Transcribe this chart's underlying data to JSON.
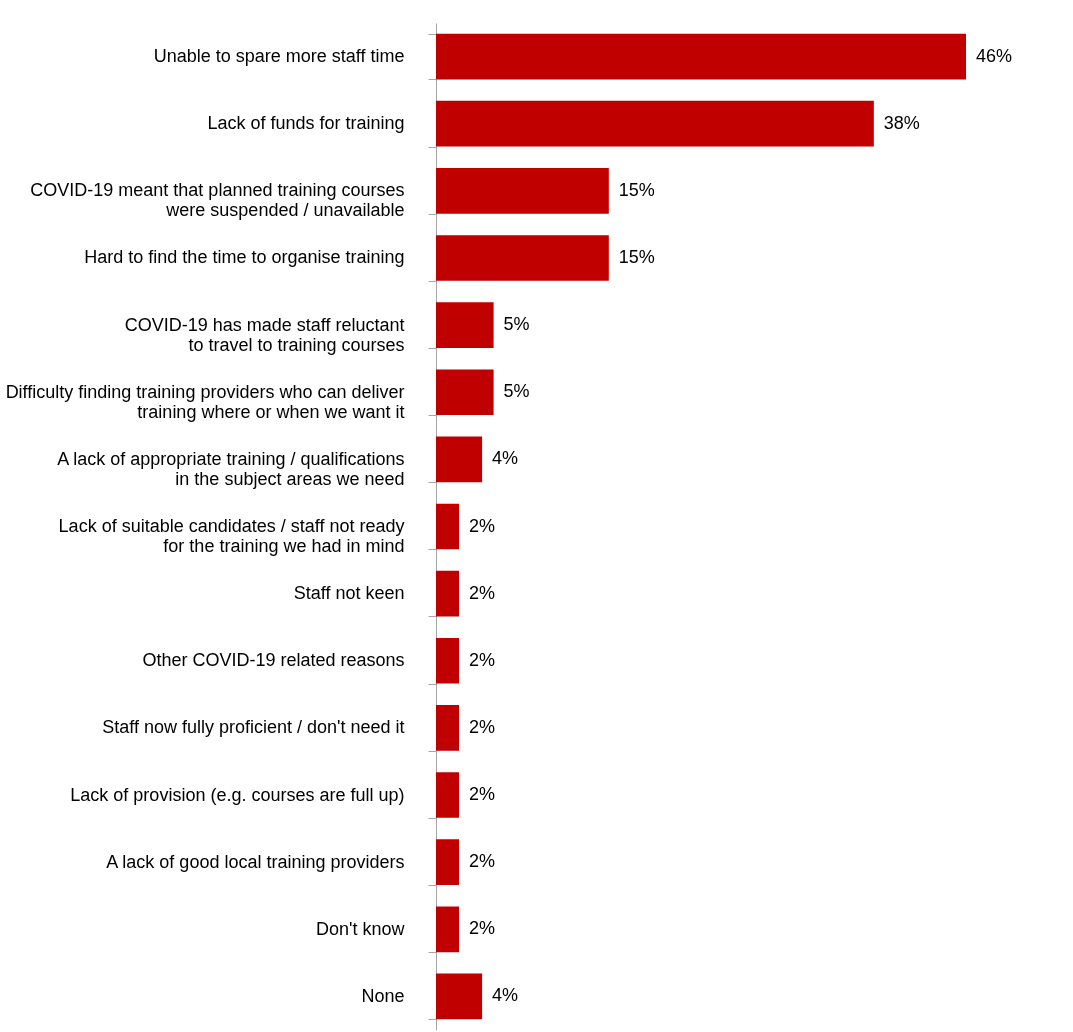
{
  "chart_data": {
    "type": "bar",
    "orientation": "horizontal",
    "categories": [
      "Unable to spare more staff time",
      "Lack of funds for training",
      "COVID-19 meant that planned training courses\nwere suspended / unavailable",
      "Hard to find the time to organise training",
      "COVID-19 has made staff reluctant\nto travel to training courses",
      "Difficulty finding training providers who can deliver\ntraining where or when we want it",
      "A lack of appropriate training / qualifications\nin the subject areas we need",
      "Lack of suitable candidates / staff not ready\nfor the training we had in mind",
      "Staff not keen",
      "Other COVID-19 related reasons",
      "Staff now fully proficient / don't need it",
      "Lack of provision (e.g. courses are full up)",
      "A lack of good local training providers",
      "Don't know",
      "None"
    ],
    "values": [
      46,
      38,
      15,
      15,
      5,
      5,
      4,
      2,
      2,
      2,
      2,
      2,
      2,
      2,
      4
    ],
    "value_labels": [
      "46%",
      "38%",
      "15%",
      "15%",
      "5%",
      "5%",
      "4%",
      "2%",
      "2%",
      "2%",
      "2%",
      "2%",
      "2%",
      "2%",
      "4%"
    ],
    "color": "#c00000",
    "grid": false
  }
}
